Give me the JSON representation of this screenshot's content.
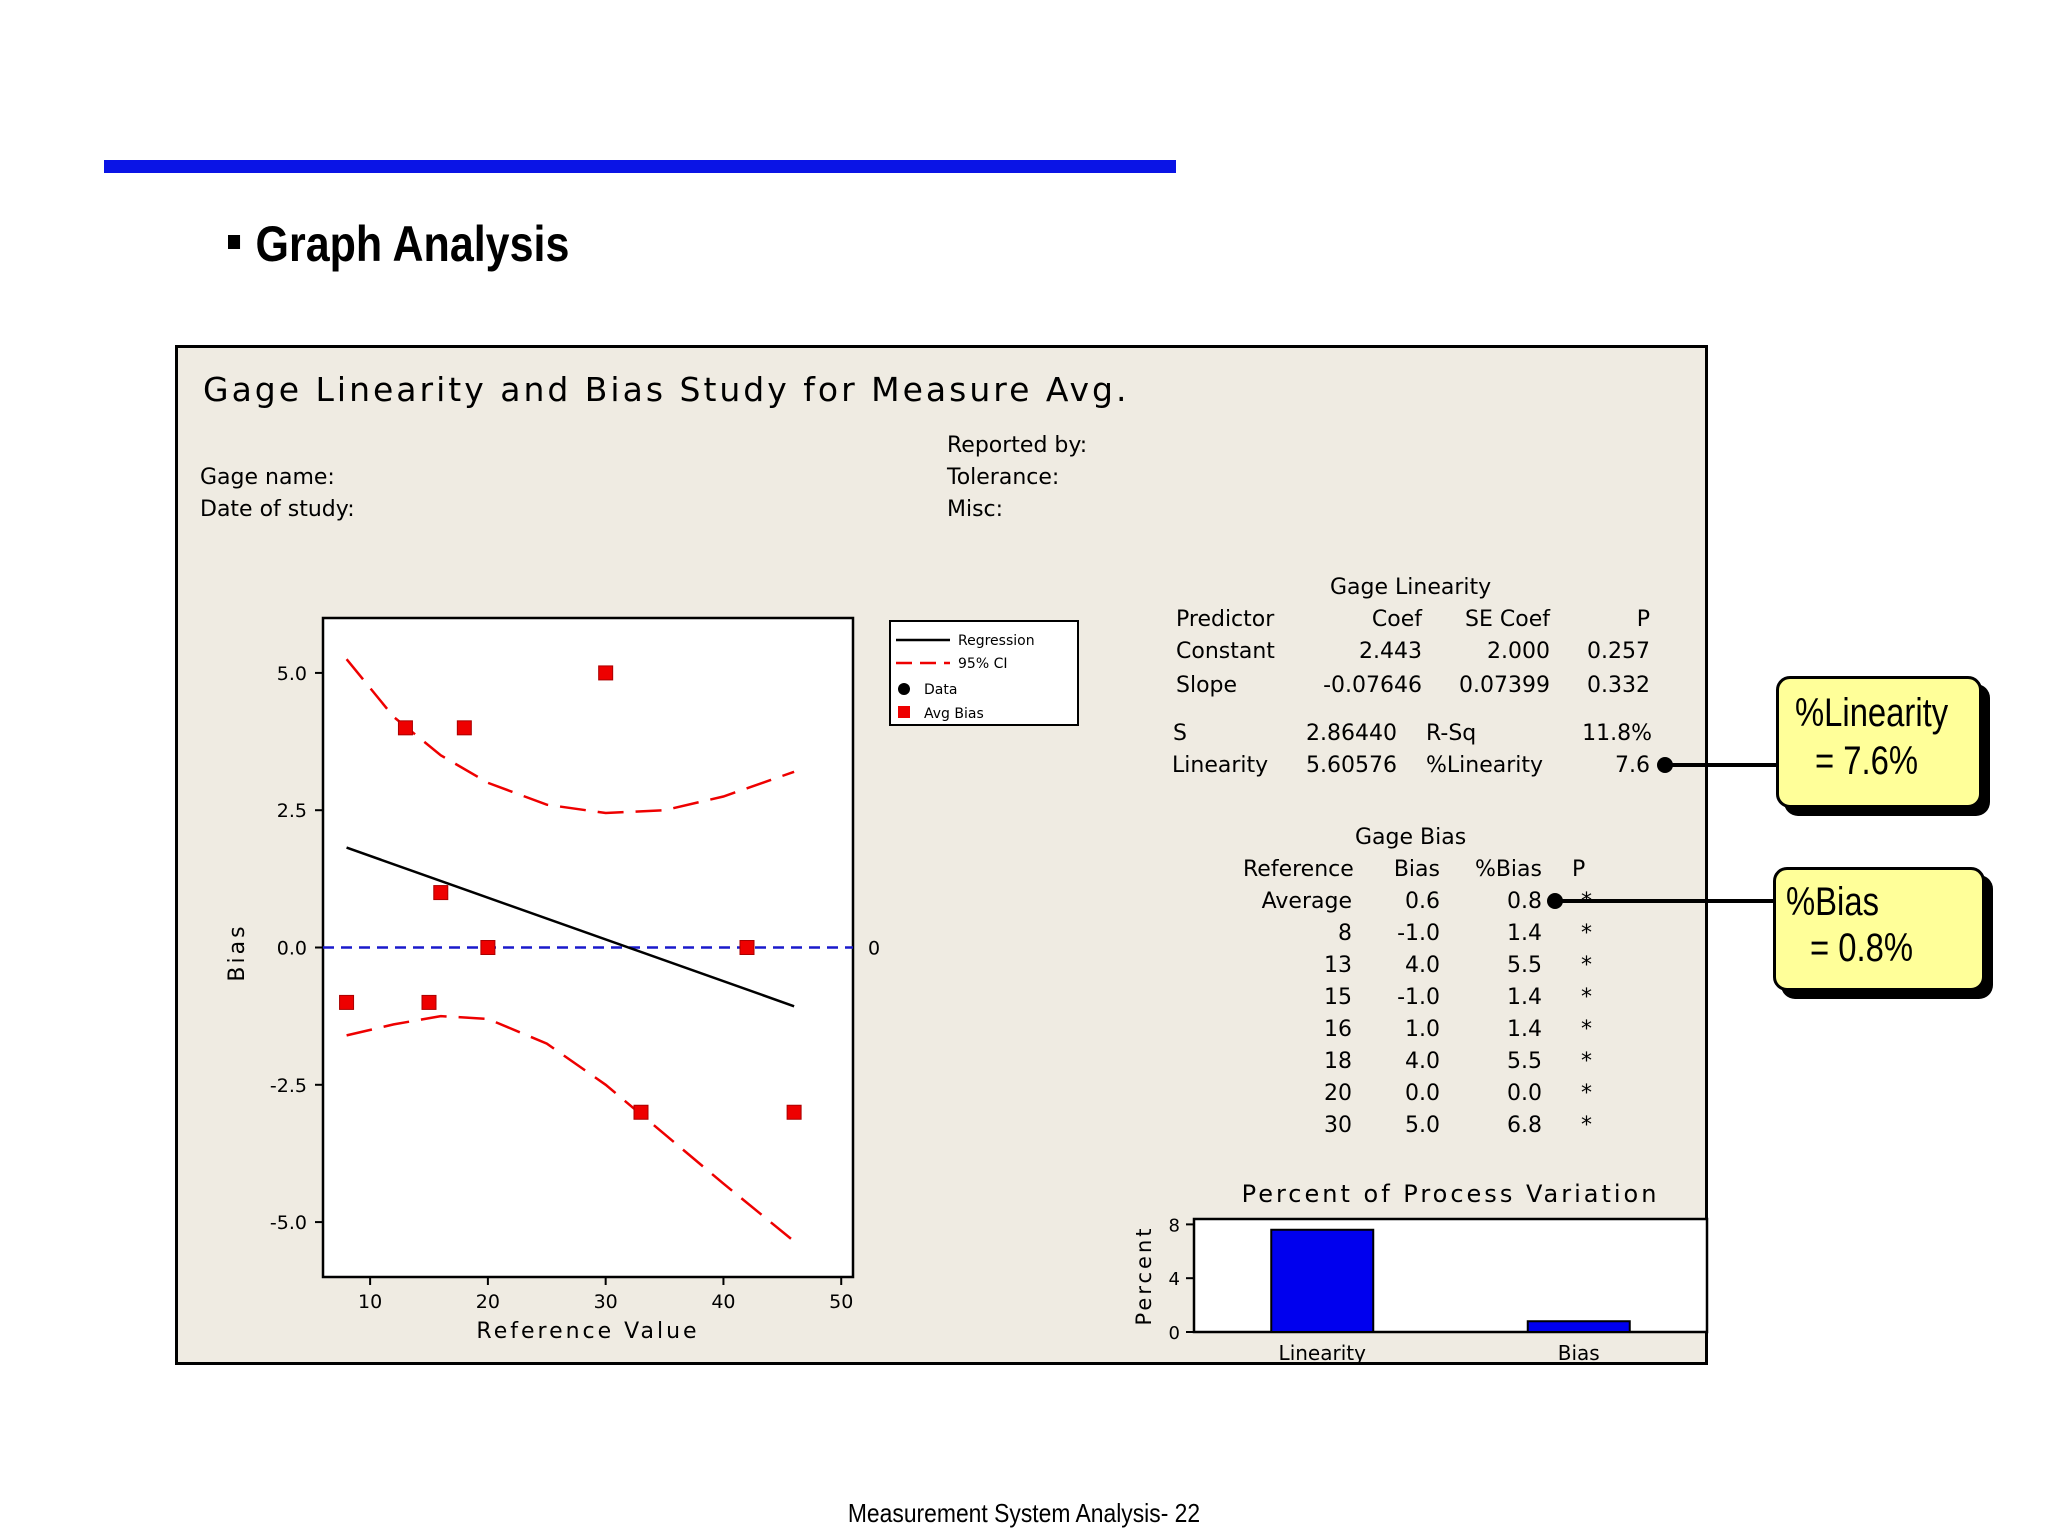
{
  "slide": {
    "heading": "Graph Analysis",
    "footer": "Measurement System Analysis- 22"
  },
  "panel": {
    "title": "Gage Linearity and Bias Study for Measure Avg.",
    "gage_name_label": "Gage name:",
    "date_label": "Date of study:",
    "reported_label": "Reported by:",
    "tolerance_label": "Tolerance:",
    "misc_label": "Misc:"
  },
  "linearity_table": {
    "title": "Gage Linearity",
    "headers": [
      "Predictor",
      "Coef",
      "SE Coef",
      "P"
    ],
    "rows": [
      [
        "Constant",
        "2.443",
        "2.000",
        "0.257"
      ],
      [
        "Slope",
        "-0.07646",
        "0.07399",
        "0.332"
      ]
    ],
    "s_label": "S",
    "s_value": "2.86440",
    "rsq_label": "R-Sq",
    "rsq_value": "11.8%",
    "lin_label": "Linearity",
    "lin_value": "5.60576",
    "plin_label": "%Linearity",
    "plin_value": "7.6"
  },
  "bias_table": {
    "title": "Gage Bias",
    "headers": [
      "Reference",
      "Bias",
      "%Bias",
      "P"
    ],
    "rows": [
      [
        "Average",
        "0.6",
        "0.8",
        "*"
      ],
      [
        "8",
        "-1.0",
        "1.4",
        "*"
      ],
      [
        "13",
        "4.0",
        "5.5",
        "*"
      ],
      [
        "15",
        "-1.0",
        "1.4",
        "*"
      ],
      [
        "16",
        "1.0",
        "1.4",
        "*"
      ],
      [
        "18",
        "4.0",
        "5.5",
        "*"
      ],
      [
        "20",
        "0.0",
        "0.0",
        "*"
      ],
      [
        "30",
        "5.0",
        "6.8",
        "*"
      ]
    ]
  },
  "callouts": {
    "linearity": {
      "line1": "%Linearity",
      "line2": "= 7.6%"
    },
    "bias": {
      "line1": "%Bias",
      "line2": "= 0.8%"
    }
  },
  "colors": {
    "data": "#ee0000",
    "regression": "#000000",
    "ci": "#ee0000",
    "zero_line": "#1a1acc",
    "bars": "#0000ee",
    "callout_fill": "#ffff99"
  },
  "chart_data": [
    {
      "type": "scatter",
      "title": "",
      "xlabel": "Reference Value",
      "ylabel": "Bias",
      "xlim": [
        6,
        51
      ],
      "ylim": [
        -6,
        6
      ],
      "xticks": [
        10,
        20,
        30,
        40,
        50
      ],
      "yticks": [
        5.0,
        2.5,
        0.0,
        -2.5,
        -5.0
      ],
      "ytick_labels": [
        "5.0",
        "2.5",
        "0.0",
        "-2.5",
        "-5.0"
      ],
      "zero_label": "0",
      "points": [
        [
          8,
          -1.0
        ],
        [
          13,
          4.0
        ],
        [
          15,
          -1.0
        ],
        [
          16,
          1.0
        ],
        [
          18,
          4.0
        ],
        [
          20,
          0.0
        ],
        [
          30,
          5.0
        ],
        [
          33,
          -3.0
        ],
        [
          42,
          0.0
        ],
        [
          46,
          -3.0
        ]
      ],
      "regression": {
        "x0": 8,
        "x1": 46,
        "y0": 1.82,
        "y1": -1.07
      },
      "ci_upper": [
        [
          8,
          5.25
        ],
        [
          12,
          4.2
        ],
        [
          16,
          3.5
        ],
        [
          20,
          3.0
        ],
        [
          25,
          2.6
        ],
        [
          30,
          2.45
        ],
        [
          35,
          2.5
        ],
        [
          40,
          2.75
        ],
        [
          46,
          3.2
        ]
      ],
      "ci_lower": [
        [
          8,
          -1.6
        ],
        [
          12,
          -1.4
        ],
        [
          16,
          -1.25
        ],
        [
          20,
          -1.3
        ],
        [
          25,
          -1.75
        ],
        [
          30,
          -2.5
        ],
        [
          35,
          -3.4
        ],
        [
          40,
          -4.3
        ],
        [
          46,
          -5.35
        ]
      ],
      "legend": [
        "Regression",
        "95% CI",
        "Data",
        "Avg Bias"
      ],
      "legend_position": "right"
    },
    {
      "type": "bar",
      "title": "Percent of Process Variation",
      "ylabel": "Percent",
      "categories": [
        "Linearity",
        "Bias"
      ],
      "values": [
        7.6,
        0.8
      ],
      "ylim": [
        0,
        8.4
      ],
      "yticks": [
        0,
        4,
        8
      ]
    }
  ]
}
